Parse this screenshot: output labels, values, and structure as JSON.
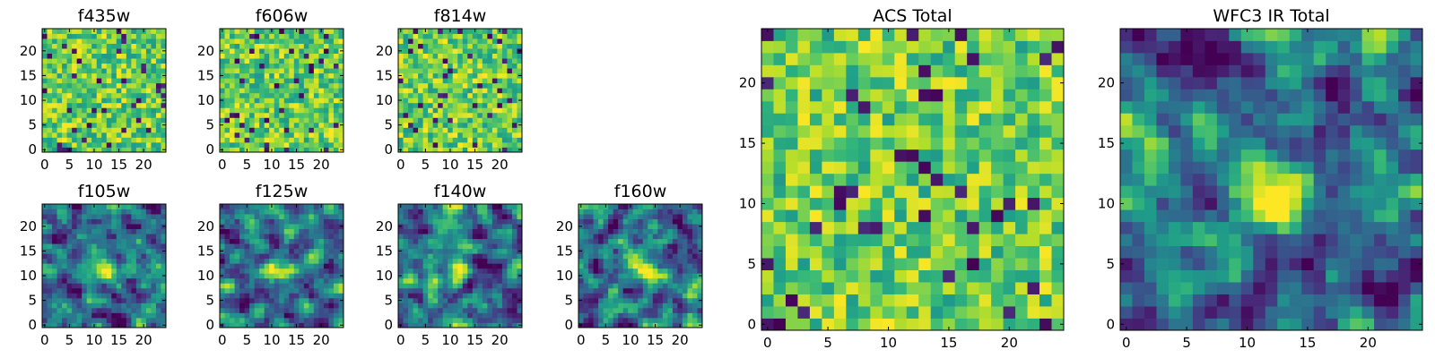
{
  "chart_data": [
    {
      "type": "heatmap",
      "title": "f435w",
      "x_ticks": [
        "0",
        "5",
        "10",
        "15",
        "20"
      ],
      "y_ticks": [
        "0",
        "5",
        "10",
        "15",
        "20"
      ],
      "xlim": [
        -0.5,
        24.5
      ],
      "ylim": [
        -0.5,
        24.5
      ],
      "grid_size": 25,
      "colormap": "viridis"
    },
    {
      "type": "heatmap",
      "title": "f606w",
      "x_ticks": [
        "0",
        "5",
        "10",
        "15",
        "20"
      ],
      "y_ticks": [
        "0",
        "5",
        "10",
        "15",
        "20"
      ],
      "xlim": [
        -0.5,
        24.5
      ],
      "ylim": [
        -0.5,
        24.5
      ],
      "grid_size": 25,
      "colormap": "viridis"
    },
    {
      "type": "heatmap",
      "title": "f814w",
      "x_ticks": [
        "0",
        "5",
        "10",
        "15",
        "20"
      ],
      "y_ticks": [
        "0",
        "5",
        "10",
        "15",
        "20"
      ],
      "xlim": [
        -0.5,
        24.5
      ],
      "ylim": [
        -0.5,
        24.5
      ],
      "grid_size": 25,
      "colormap": "viridis"
    },
    {
      "type": "heatmap",
      "title": "f105w",
      "x_ticks": [
        "0",
        "5",
        "10",
        "15",
        "20"
      ],
      "y_ticks": [
        "0",
        "5",
        "10",
        "15",
        "20"
      ],
      "xlim": [
        -0.5,
        24.5
      ],
      "ylim": [
        -0.5,
        24.5
      ],
      "grid_size": 25,
      "colormap": "viridis",
      "bright_source": [
        12,
        11
      ]
    },
    {
      "type": "heatmap",
      "title": "f125w",
      "x_ticks": [
        "0",
        "5",
        "10",
        "15",
        "20"
      ],
      "y_ticks": [
        "0",
        "5",
        "10",
        "15",
        "20"
      ],
      "xlim": [
        -0.5,
        24.5
      ],
      "ylim": [
        -0.5,
        24.5
      ],
      "grid_size": 25,
      "colormap": "viridis",
      "bright_source": [
        12,
        11
      ]
    },
    {
      "type": "heatmap",
      "title": "f140w",
      "x_ticks": [
        "0",
        "5",
        "10",
        "15",
        "20"
      ],
      "y_ticks": [
        "0",
        "5",
        "10",
        "15",
        "20"
      ],
      "xlim": [
        -0.5,
        24.5
      ],
      "ylim": [
        -0.5,
        24.5
      ],
      "grid_size": 25,
      "colormap": "viridis",
      "bright_source": [
        12,
        11
      ]
    },
    {
      "type": "heatmap",
      "title": "f160w",
      "x_ticks": [
        "0",
        "5",
        "10",
        "15",
        "20"
      ],
      "y_ticks": [
        "0",
        "5",
        "10",
        "15",
        "20"
      ],
      "xlim": [
        -0.5,
        24.5
      ],
      "ylim": [
        -0.5,
        24.5
      ],
      "grid_size": 25,
      "colormap": "viridis",
      "bright_source": [
        12,
        11
      ]
    },
    {
      "type": "heatmap",
      "title": "ACS Total",
      "x_ticks": [
        "0",
        "5",
        "10",
        "15",
        "20"
      ],
      "y_ticks": [
        "0",
        "5",
        "10",
        "15",
        "20"
      ],
      "xlim": [
        -0.5,
        24.5
      ],
      "ylim": [
        -0.5,
        24.5
      ],
      "grid_size": 25,
      "colormap": "viridis"
    },
    {
      "type": "heatmap",
      "title": "WFC3 IR Total",
      "x_ticks": [
        "0",
        "5",
        "10",
        "15",
        "20"
      ],
      "y_ticks": [
        "0",
        "5",
        "10",
        "15",
        "20"
      ],
      "xlim": [
        -0.5,
        24.5
      ],
      "ylim": [
        -0.5,
        24.5
      ],
      "grid_size": 25,
      "colormap": "viridis",
      "bright_source": [
        12,
        11
      ]
    }
  ]
}
